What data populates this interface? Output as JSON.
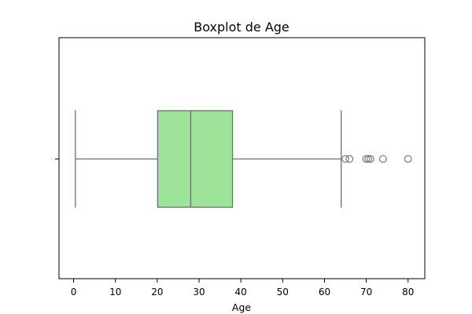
{
  "chart_data": {
    "type": "boxplot",
    "title": "Boxplot de Age",
    "xlabel": "Age",
    "ylabel": "",
    "xlim": [
      -3.5,
      84
    ],
    "xticks": [
      0,
      10,
      20,
      30,
      40,
      50,
      60,
      70,
      80
    ],
    "xtick_labels": [
      "0",
      "10",
      "20",
      "30",
      "40",
      "50",
      "60",
      "70",
      "80"
    ],
    "grid": false,
    "orientation": "horizontal",
    "box": {
      "whisker_low": 0.42,
      "q1": 20.1,
      "median": 28,
      "q3": 38,
      "whisker_high": 64,
      "outliers": [
        65,
        66,
        70,
        70.5,
        71,
        74,
        80
      ]
    },
    "colors": {
      "box_fill": "#9de39a",
      "line": "#6e6e6e",
      "axes": "#000000",
      "outlier_edge": "#6e6e6e"
    }
  }
}
